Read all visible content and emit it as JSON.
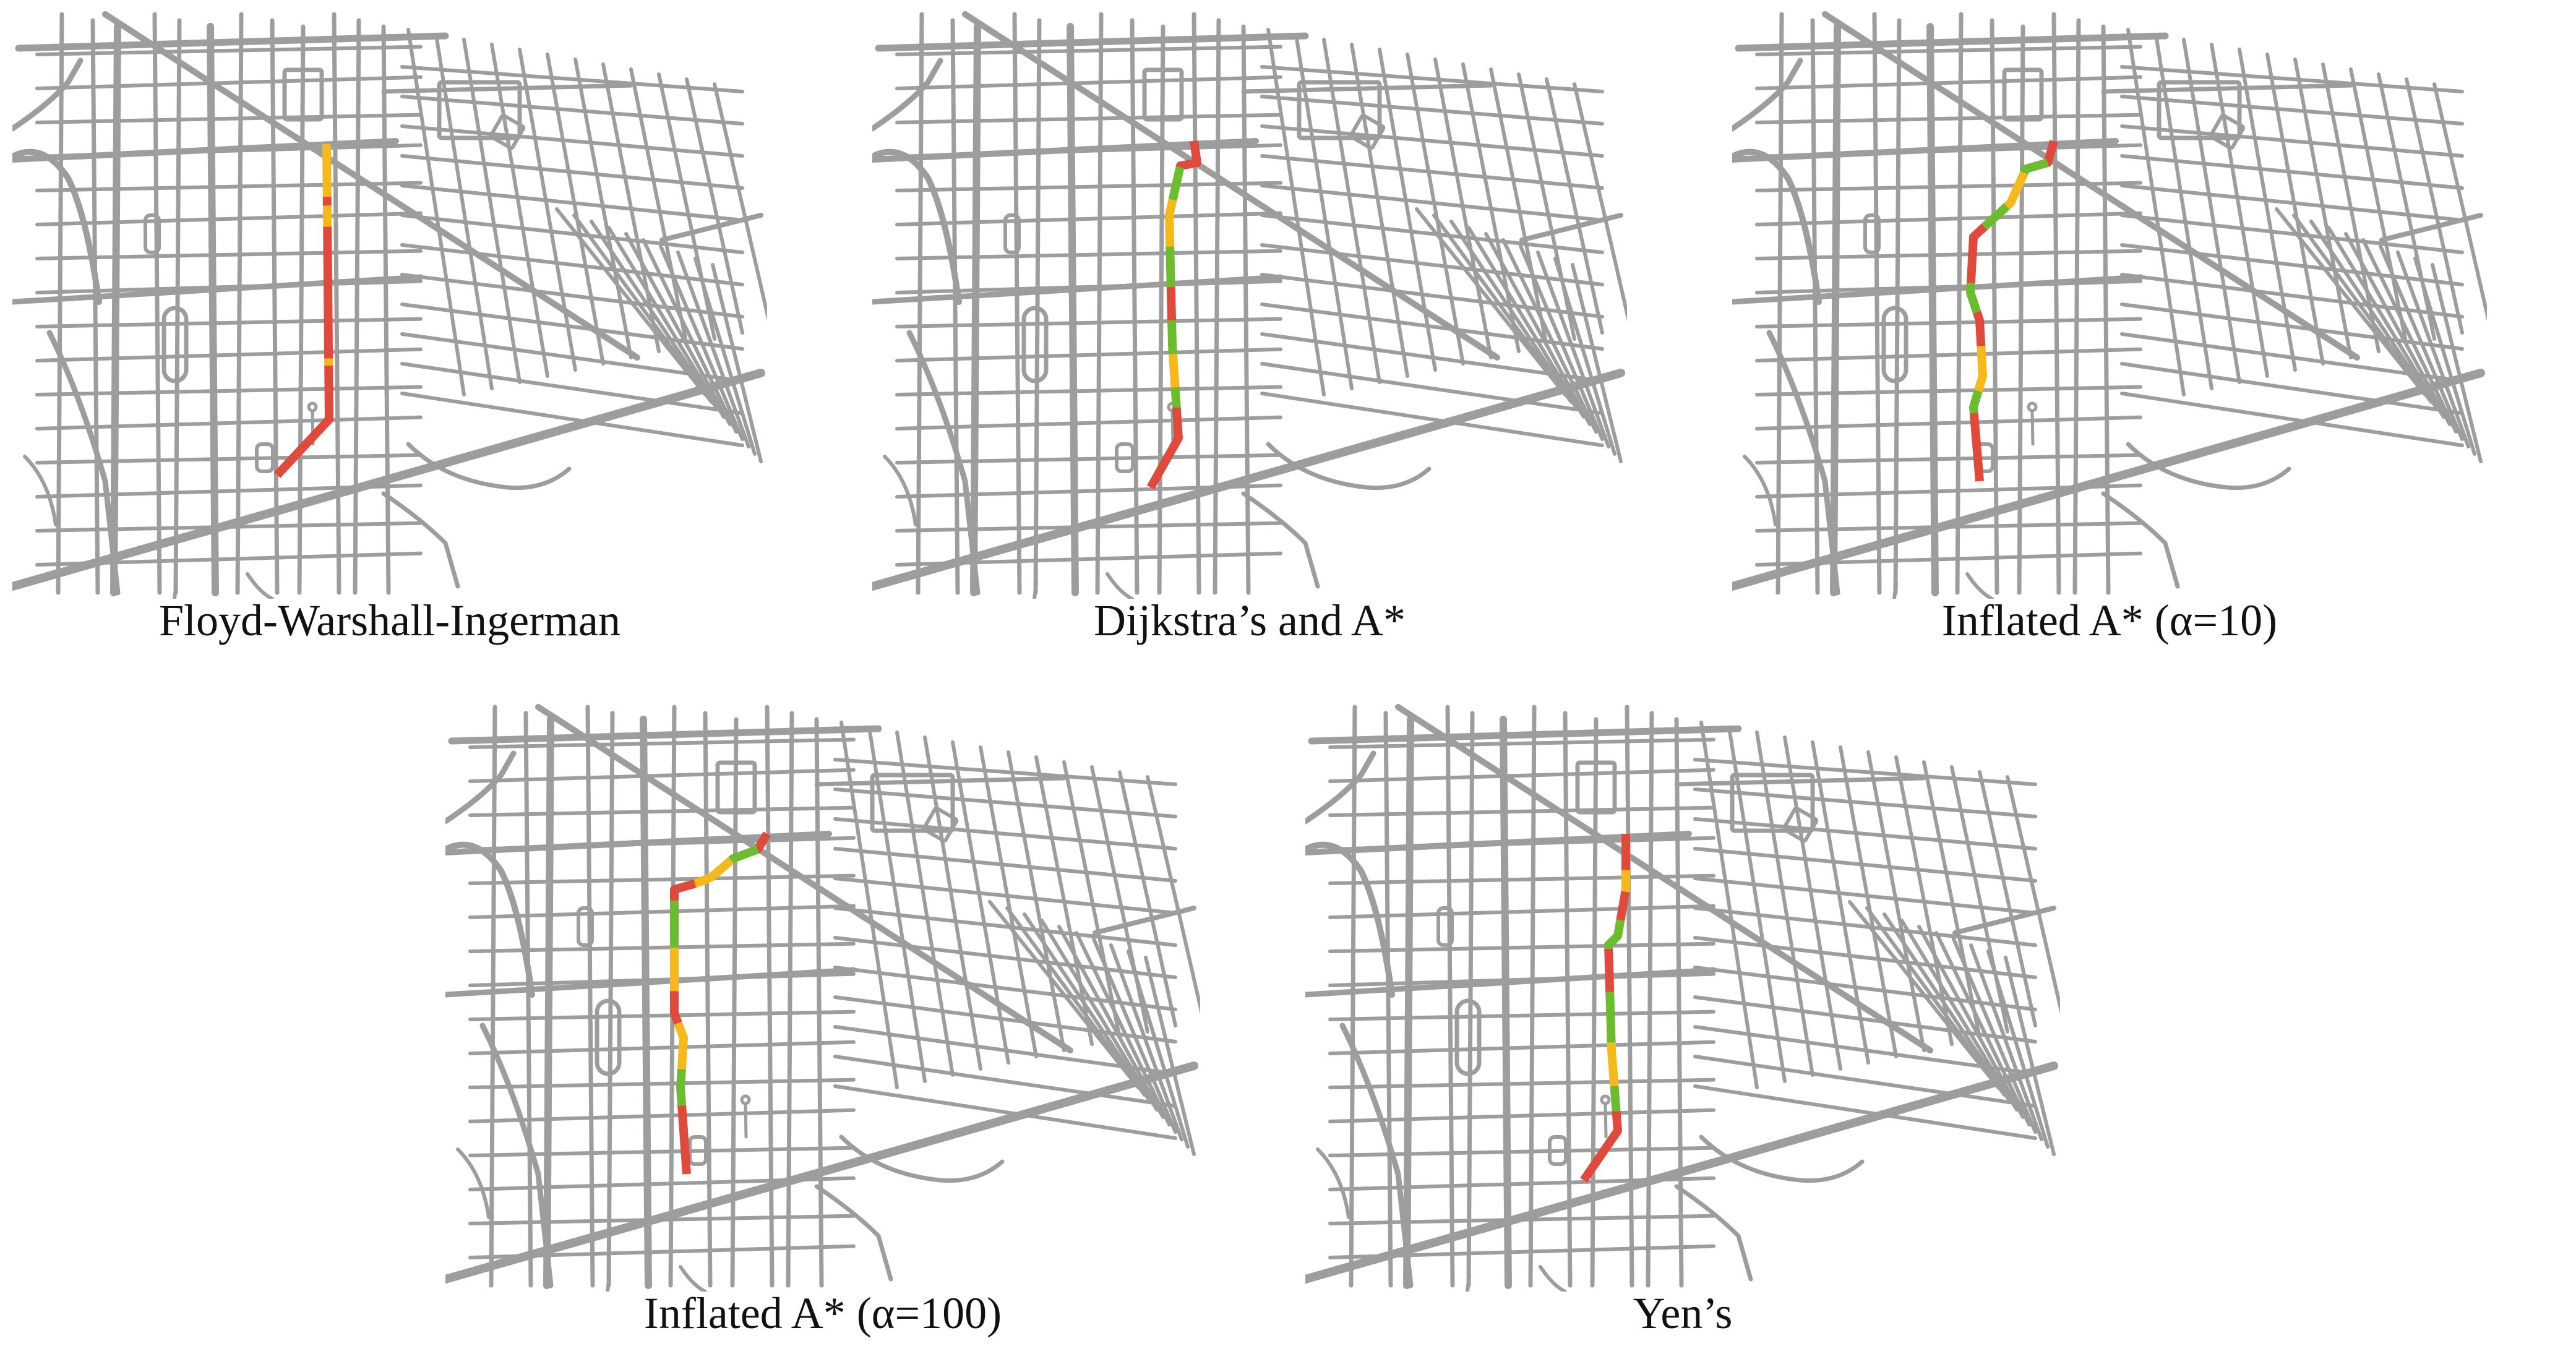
{
  "colors": {
    "background": "#ffffff",
    "road": "#9d9d9d",
    "route_red": "#e04a3c",
    "route_yellow": "#f5b91c",
    "route_green": "#6bbd2f"
  },
  "panels": [
    {
      "caption": "Floyd-Warshall-Ingerman"
    },
    {
      "caption": "Dijkstra’s and A*"
    },
    {
      "caption": "Inflated A* (α=10)"
    },
    {
      "caption": "Inflated A* (α=100)"
    },
    {
      "caption": "Yen’s"
    }
  ]
}
